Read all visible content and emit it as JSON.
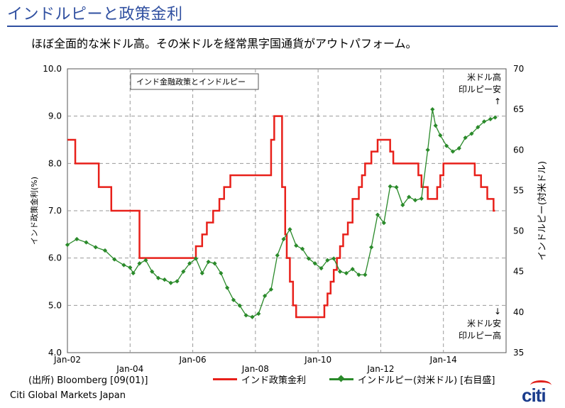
{
  "header": {
    "title": "インドルピーと政策金利",
    "subtitle": "ほぼ全面的な米ドル高。その米ドルを経常黒字国通貨がアウトパフォーム。"
  },
  "footer": {
    "source": "(出所) Bloomberg [09(01)]",
    "company": "Citi Global Markets Japan",
    "logo_text": "citi"
  },
  "colors": {
    "policy_rate": "#e8201a",
    "rupee": "#2a8a2a",
    "grid": "#9a9a9a",
    "title": "#2f4fa0"
  },
  "chart_data": {
    "type": "line",
    "title": "",
    "inset_label": "インド金融政策とインドルピー",
    "annotation_top": [
      "米ドル高",
      "印ルピー安",
      "↑"
    ],
    "annotation_bottom": [
      "↓",
      "米ドル安",
      "印ルピー高"
    ],
    "x_ticks": [
      "Jan-02",
      "Jan-04",
      "Jan-06",
      "Jan-08",
      "Jan-10",
      "Jan-12",
      "Jan-14"
    ],
    "x_tick_years": [
      2002,
      2004,
      2006,
      2008,
      2010,
      2012,
      2014
    ],
    "xlim": [
      2002,
      2016
    ],
    "ylabel_left": "インド政策金利(%)",
    "ylabel_right": "インドルピー(対米ドル)",
    "ylim_left": [
      4.0,
      10.0
    ],
    "ylim_right": [
      35,
      70
    ],
    "y_ticks_left": [
      "4.0",
      "5.0",
      "6.0",
      "7.0",
      "8.0",
      "9.0",
      "10.0"
    ],
    "y_ticks_right": [
      "35",
      "40",
      "45",
      "50",
      "55",
      "60",
      "65",
      "70"
    ],
    "grid": true,
    "legend_position": "bottom",
    "series": [
      {
        "name": "インド政策金利",
        "axis": "left",
        "style": "step",
        "x": [
          2002.0,
          2002.25,
          2003.0,
          2003.4,
          2003.6,
          2004.3,
          2006.1,
          2006.3,
          2006.45,
          2006.65,
          2006.85,
          2007.0,
          2007.2,
          2007.4,
          2007.5,
          2008.5,
          2008.6,
          2008.85,
          2008.95,
          2009.0,
          2009.1,
          2009.2,
          2009.3,
          2009.4,
          2010.2,
          2010.3,
          2010.4,
          2010.5,
          2010.6,
          2010.7,
          2010.8,
          2010.95,
          2011.1,
          2011.3,
          2011.4,
          2011.5,
          2011.7,
          2011.9,
          2012.3,
          2012.4,
          2013.2,
          2013.3,
          2013.5,
          2013.7,
          2013.8,
          2013.9,
          2014.0,
          2015.0,
          2015.2,
          2015.4,
          2015.6,
          2015.65
        ],
        "values": [
          8.5,
          8.0,
          7.5,
          7.0,
          7.0,
          6.0,
          6.25,
          6.5,
          6.75,
          7.0,
          7.25,
          7.5,
          7.75,
          7.75,
          7.75,
          8.5,
          9.0,
          7.5,
          6.5,
          6.0,
          5.5,
          5.0,
          4.75,
          4.75,
          5.0,
          5.25,
          5.5,
          5.75,
          6.0,
          6.25,
          6.5,
          6.75,
          7.25,
          7.5,
          7.75,
          8.0,
          8.25,
          8.5,
          8.25,
          8.0,
          7.75,
          7.5,
          7.25,
          7.25,
          7.5,
          7.75,
          8.0,
          7.75,
          7.5,
          7.25,
          7.0,
          7.0
        ]
      },
      {
        "name": "インドルピー(対米ドル) [右目盛]",
        "axis": "right",
        "style": "line-markers",
        "x": [
          2002.0,
          2002.3,
          2002.6,
          2002.9,
          2003.2,
          2003.5,
          2003.8,
          2004.0,
          2004.1,
          2004.3,
          2004.5,
          2004.7,
          2004.9,
          2005.1,
          2005.3,
          2005.5,
          2005.7,
          2005.9,
          2006.1,
          2006.3,
          2006.5,
          2006.7,
          2006.9,
          2007.1,
          2007.3,
          2007.5,
          2007.7,
          2007.9,
          2008.1,
          2008.3,
          2008.5,
          2008.7,
          2008.9,
          2009.1,
          2009.3,
          2009.5,
          2009.7,
          2009.9,
          2010.1,
          2010.3,
          2010.5,
          2010.7,
          2010.9,
          2011.1,
          2011.3,
          2011.5,
          2011.7,
          2011.9,
          2012.1,
          2012.3,
          2012.5,
          2012.7,
          2012.9,
          2013.1,
          2013.3,
          2013.5,
          2013.65,
          2013.75,
          2013.9,
          2014.1,
          2014.3,
          2014.5,
          2014.7,
          2014.9,
          2015.1,
          2015.3,
          2015.5,
          2015.65
        ],
        "values": [
          48.3,
          49.0,
          48.6,
          48.0,
          47.6,
          46.5,
          45.8,
          45.5,
          44.8,
          46.0,
          46.4,
          45.0,
          44.2,
          44.0,
          43.6,
          43.8,
          45.0,
          46.0,
          46.6,
          44.8,
          46.2,
          46.0,
          44.8,
          43.0,
          41.5,
          40.8,
          39.6,
          39.4,
          39.8,
          42.0,
          42.8,
          47.0,
          49.0,
          50.2,
          48.2,
          47.8,
          46.6,
          46.0,
          45.4,
          46.4,
          46.6,
          45.0,
          44.8,
          45.3,
          44.6,
          44.6,
          48.0,
          52.0,
          51.0,
          55.5,
          55.4,
          53.2,
          54.2,
          53.8,
          54.0,
          60.0,
          65.0,
          63.0,
          61.8,
          60.5,
          59.8,
          60.2,
          61.5,
          62.0,
          62.8,
          63.5,
          63.8,
          64.0
        ]
      }
    ]
  }
}
